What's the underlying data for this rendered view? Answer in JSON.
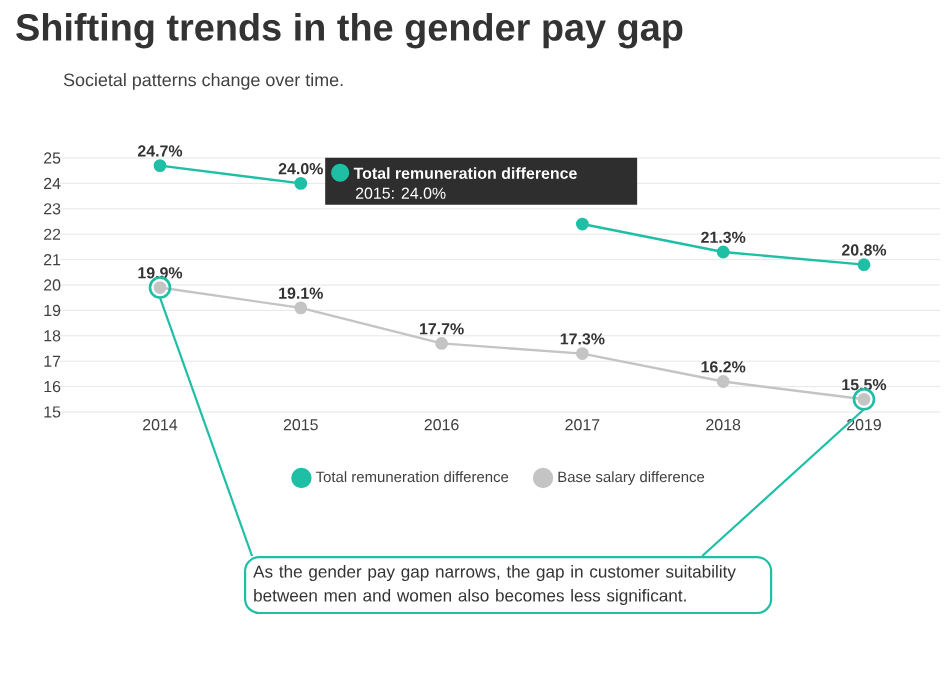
{
  "chart_data": {
    "type": "line",
    "title": "Shifting trends in the gender pay gap",
    "subtitle": "Societal patterns change over time.",
    "categories": [
      "2014",
      "2015",
      "2016",
      "2017",
      "2018",
      "2019"
    ],
    "series": [
      {
        "name": "Total remuneration difference",
        "color": "#1fbfa6",
        "values": [
          24.7,
          24.0,
          null,
          22.4,
          21.3,
          20.8
        ],
        "value_labels": [
          "24.7%",
          "24.0%",
          null,
          null,
          "21.3%",
          "20.8%"
        ]
      },
      {
        "name": "Base salary difference",
        "color": "#c4c4c4",
        "values": [
          19.9,
          19.1,
          17.7,
          17.3,
          16.2,
          15.5
        ],
        "value_labels": [
          "19.9%",
          "19.1%",
          "17.7%",
          "17.3%",
          "16.2%",
          "15.5%"
        ]
      }
    ],
    "ylim": [
      15,
      25
    ],
    "yticks": [
      15,
      16,
      17,
      18,
      19,
      20,
      21,
      22,
      23,
      24,
      25
    ],
    "grid": "y",
    "legend": "bottom",
    "marker": "circle",
    "annotations": [
      "Total remuneration difference",
      "2015: 24.0%",
      {
        "text": "As the gender pay gap narrows, the gap in customer suitability between men and women also becomes less significant.",
        "x": "2014",
        "y": 19.9
      }
    ]
  }
}
